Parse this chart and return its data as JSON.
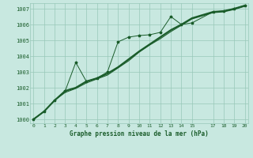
{
  "xlabel": "Graphe pression niveau de la mer (hPa)",
  "bg_color": "#c8e8e0",
  "grid_color": "#98c8b8",
  "line_color": "#1a5c2a",
  "x_ticks": [
    0,
    1,
    2,
    3,
    4,
    5,
    6,
    7,
    8,
    9,
    10,
    11,
    12,
    13,
    14,
    15,
    17,
    18,
    19,
    20
  ],
  "x_tick_labels": [
    "0",
    "1",
    "2",
    "3",
    "4",
    "5",
    "6",
    "7",
    "8",
    "9",
    "10",
    "11",
    "12",
    "13",
    "14",
    "15",
    "17",
    "18",
    "19",
    "20"
  ],
  "xlim": [
    -0.3,
    20.3
  ],
  "ylim": [
    999.75,
    1007.35
  ],
  "y_ticks": [
    1000,
    1001,
    1002,
    1003,
    1004,
    1005,
    1006,
    1007
  ],
  "series_smooth1_x": [
    0,
    1,
    2,
    3,
    4,
    5,
    6,
    7,
    8,
    9,
    10,
    11,
    12,
    13,
    14,
    15,
    17,
    18,
    19,
    20
  ],
  "series_smooth1_y": [
    1000.0,
    1000.5,
    1001.2,
    1001.8,
    1002.0,
    1002.4,
    1002.6,
    1002.9,
    1003.3,
    1003.8,
    1004.3,
    1004.75,
    1005.2,
    1005.65,
    1006.0,
    1006.4,
    1006.8,
    1006.85,
    1007.0,
    1007.2
  ],
  "series_smooth2_x": [
    0,
    1,
    2,
    3,
    4,
    5,
    6,
    7,
    8,
    9,
    10,
    11,
    12,
    13,
    14,
    15,
    17,
    18,
    19,
    20
  ],
  "series_smooth2_y": [
    1000.0,
    1000.5,
    1001.2,
    1001.7,
    1001.95,
    1002.3,
    1002.55,
    1002.8,
    1003.25,
    1003.7,
    1004.25,
    1004.7,
    1005.1,
    1005.55,
    1005.95,
    1006.35,
    1006.75,
    1006.8,
    1006.95,
    1007.15
  ],
  "series_marker_x": [
    0,
    1,
    2,
    3,
    4,
    5,
    6,
    7,
    8,
    9,
    10,
    11,
    12,
    13,
    14,
    15,
    17,
    18,
    19,
    20
  ],
  "series_marker_y": [
    1000.0,
    1000.5,
    1001.2,
    1001.8,
    1003.6,
    1002.4,
    1002.6,
    1003.0,
    1004.9,
    1005.2,
    1005.3,
    1005.35,
    1005.5,
    1006.5,
    1006.0,
    1006.1,
    1006.8,
    1006.85,
    1007.0,
    1007.2
  ]
}
